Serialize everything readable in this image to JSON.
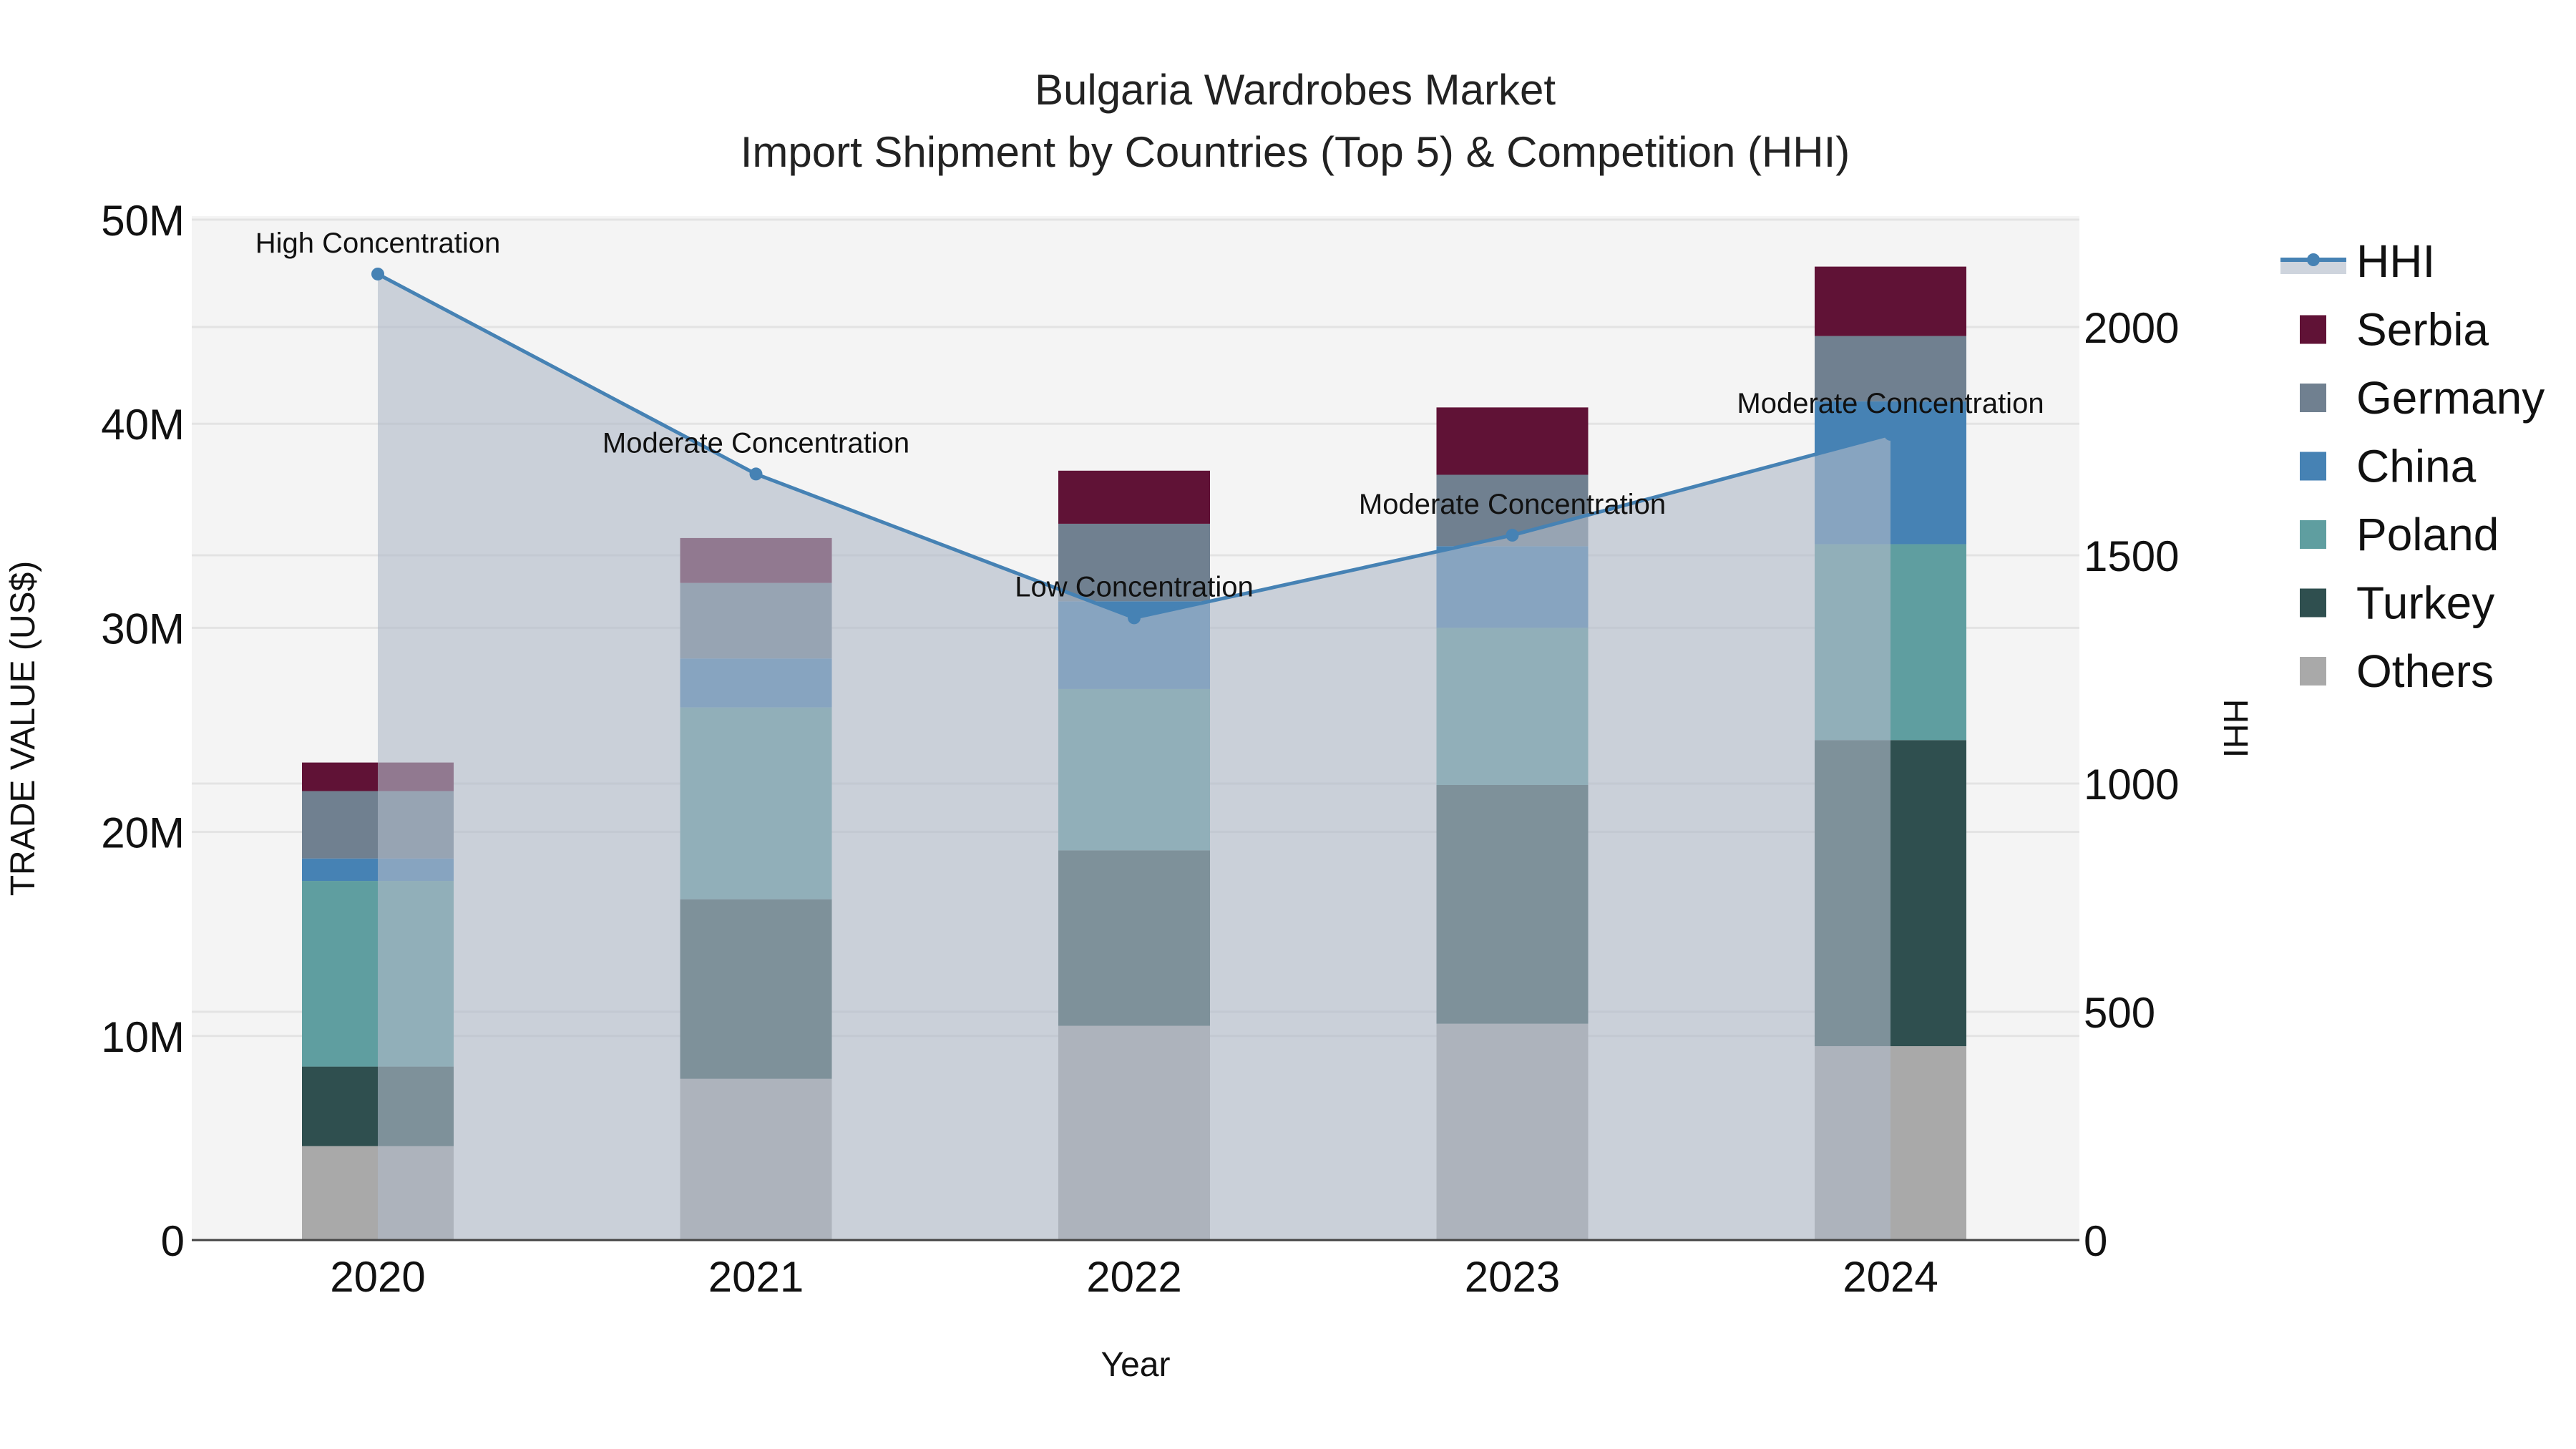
{
  "title": {
    "line1": "Bulgaria Wardrobes Market",
    "line2": "Import Shipment by Countries (Top 5) & Competition (HHI)"
  },
  "axes": {
    "x_title": "Year",
    "y_left_title": "TRADE VALUE (US$)",
    "y_right_title": "HHI",
    "y_left_ticks": [
      "0",
      "10M",
      "20M",
      "30M",
      "40M",
      "50M"
    ],
    "y_right_ticks": [
      "0",
      "500",
      "1000",
      "1500",
      "2000"
    ]
  },
  "legend": {
    "items": [
      {
        "label": "HHI",
        "type": "line",
        "color": "#4682B4"
      },
      {
        "label": "Serbia",
        "type": "box",
        "color": "#601236"
      },
      {
        "label": "Germany",
        "type": "box",
        "color": "#708090"
      },
      {
        "label": "China",
        "type": "box",
        "color": "#4682B4"
      },
      {
        "label": "Poland",
        "type": "box",
        "color": "#5F9EA0"
      },
      {
        "label": "Turkey",
        "type": "box",
        "color": "#2F4F4F"
      },
      {
        "label": "Others",
        "type": "box",
        "color": "#A9A9A9"
      }
    ]
  },
  "colors": {
    "plot_bg": "#F4F4F4",
    "grid": "#E3E3E3",
    "hhi_line": "#4682B4",
    "hhi_fill": "rgba(176,186,200,0.62)"
  },
  "chart_data": {
    "type": "bar",
    "stacked": true,
    "title": "Bulgaria Wardrobes Market — Import Shipment by Countries (Top 5) & Competition (HHI)",
    "xlabel": "Year",
    "ylabel": "TRADE VALUE (US$)",
    "y2label": "HHI",
    "categories": [
      "2020",
      "2021",
      "2022",
      "2023",
      "2024"
    ],
    "ylim": [
      0,
      50000000
    ],
    "y2lim": [
      0,
      2240
    ],
    "grid": true,
    "legend_position": "right",
    "series": [
      {
        "name": "Others",
        "color": "#A9A9A9",
        "values": [
          4600000,
          7900000,
          10500000,
          10600000,
          9500000
        ]
      },
      {
        "name": "Turkey",
        "color": "#2F4F4F",
        "values": [
          3900000,
          8800000,
          8600000,
          11700000,
          15000000
        ]
      },
      {
        "name": "Poland",
        "color": "#5F9EA0",
        "values": [
          9100000,
          9400000,
          7900000,
          7700000,
          9600000
        ]
      },
      {
        "name": "China",
        "color": "#4682B4",
        "values": [
          1100000,
          2400000,
          4300000,
          4000000,
          7000000
        ]
      },
      {
        "name": "Germany",
        "color": "#708090",
        "values": [
          3300000,
          3700000,
          3800000,
          3500000,
          3200000
        ]
      },
      {
        "name": "Serbia",
        "color": "#601236",
        "values": [
          1400000,
          2200000,
          2600000,
          3300000,
          3400000
        ]
      }
    ],
    "line_series": {
      "name": "HHI",
      "axis": "right",
      "color": "#4682B4",
      "fill": "tozeroy",
      "values": [
        2116,
        1678,
        1363,
        1544,
        1765
      ],
      "annotations": [
        "High Concentration",
        "Moderate Concentration",
        "Low Concentration",
        "Moderate Concentration",
        "Moderate Concentration"
      ]
    }
  }
}
